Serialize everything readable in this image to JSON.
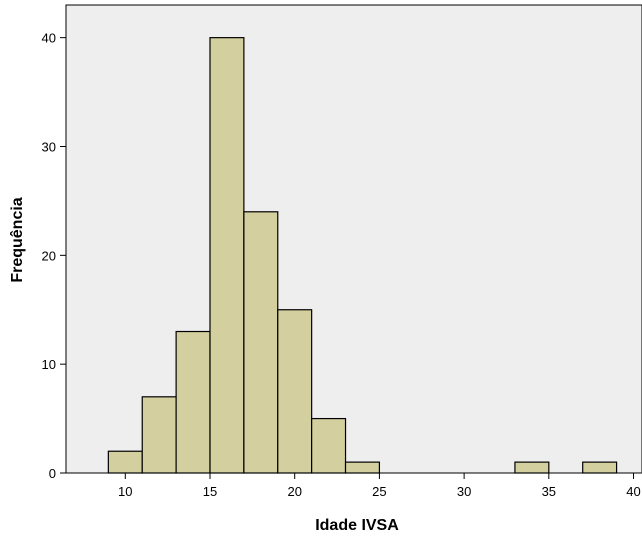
{
  "chart_data": {
    "type": "bar",
    "title": "",
    "xlabel": "Idade IVSA",
    "ylabel": "Frequência",
    "xlim": [
      6.5,
      40.5
    ],
    "ylim": [
      0,
      43
    ],
    "x_ticks": [
      10,
      15,
      20,
      25,
      30,
      35,
      40
    ],
    "y_ticks": [
      0,
      10,
      20,
      30,
      40
    ],
    "grid": false,
    "bins": [
      {
        "x0": 9,
        "x1": 11,
        "value": 2
      },
      {
        "x0": 11,
        "x1": 13,
        "value": 7
      },
      {
        "x0": 13,
        "x1": 15,
        "value": 13
      },
      {
        "x0": 15,
        "x1": 17,
        "value": 40
      },
      {
        "x0": 17,
        "x1": 19,
        "value": 24
      },
      {
        "x0": 19,
        "x1": 21,
        "value": 15
      },
      {
        "x0": 21,
        "x1": 23,
        "value": 5
      },
      {
        "x0": 23,
        "x1": 25,
        "value": 1
      },
      {
        "x0": 33,
        "x1": 35,
        "value": 1
      },
      {
        "x0": 37,
        "x1": 39,
        "value": 1
      }
    ],
    "colors": {
      "plot_background": "#eeeeee",
      "bar_fill": "#d4cf9f",
      "bar_stroke": "#000000",
      "axis": "#000000"
    }
  }
}
